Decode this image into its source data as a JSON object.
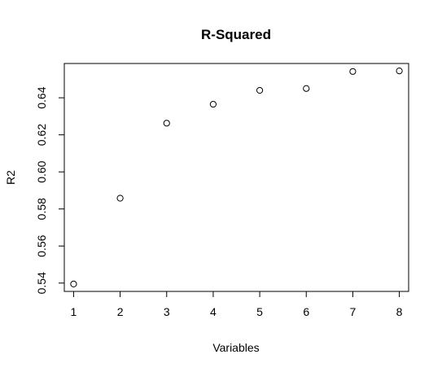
{
  "chart_data": {
    "type": "scatter",
    "title": "R-Squared",
    "xlabel": "Variables",
    "ylabel": "R2",
    "x": [
      1,
      2,
      3,
      4,
      5,
      6,
      7,
      8
    ],
    "y": [
      0.5395,
      0.5858,
      0.6263,
      0.6365,
      0.644,
      0.645,
      0.6542,
      0.6545
    ],
    "xlim": [
      0.8,
      8.2
    ],
    "ylim": [
      0.5355,
      0.6585
    ],
    "xticks": [
      1,
      2,
      3,
      4,
      5,
      6,
      7,
      8
    ],
    "xtick_labels": [
      "1",
      "2",
      "3",
      "4",
      "5",
      "6",
      "7",
      "8"
    ],
    "yticks": [
      0.54,
      0.56,
      0.58,
      0.6,
      0.62,
      0.64
    ],
    "ytick_labels": [
      "0.54",
      "0.56",
      "0.58",
      "0.60",
      "0.62",
      "0.64"
    ],
    "grid": false,
    "marker": "open-circle"
  }
}
